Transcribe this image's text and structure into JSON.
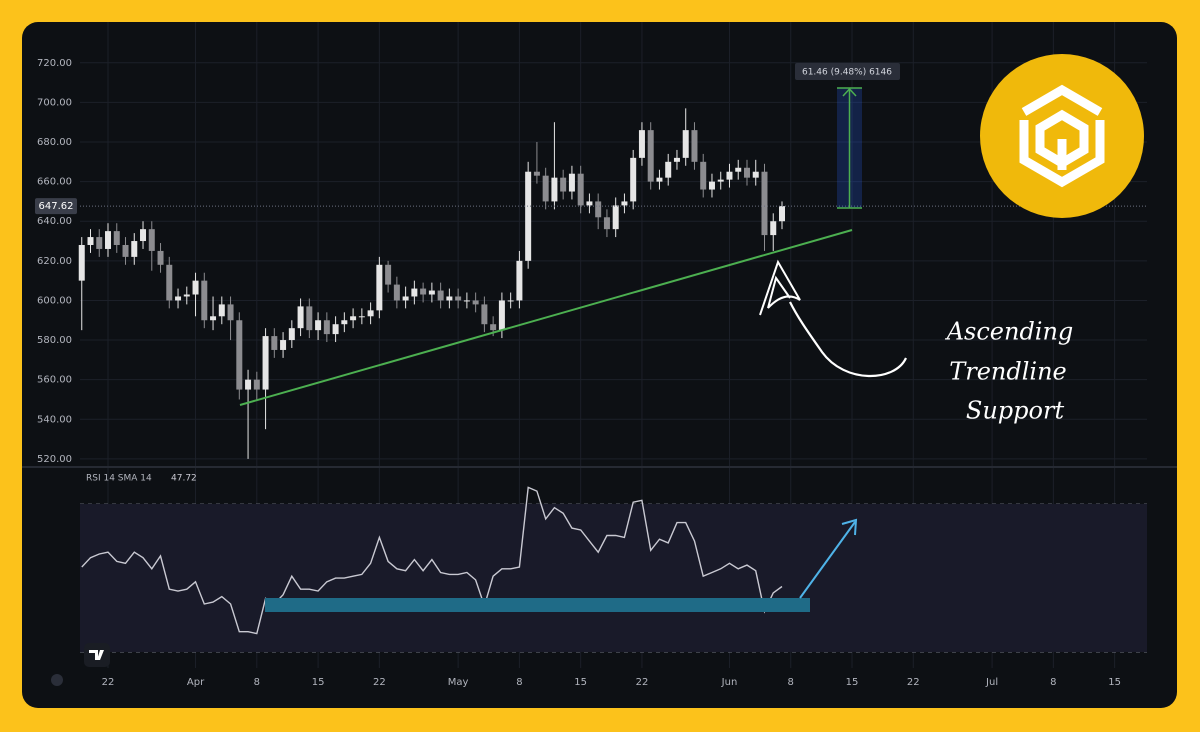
{
  "chart_data": [
    {
      "type": "candlestick",
      "x": [
        19,
        20,
        21,
        22,
        23,
        24,
        25,
        26,
        27,
        28,
        29,
        30,
        31,
        32,
        33,
        34,
        35,
        36,
        37,
        38,
        39,
        40,
        41,
        42,
        43,
        44,
        45,
        46,
        47,
        48,
        49,
        50,
        51,
        52,
        53,
        54,
        55,
        56,
        57,
        58,
        59,
        60,
        61,
        62,
        63,
        64,
        65,
        66,
        67,
        68,
        69,
        70,
        71,
        72,
        73,
        74,
        75,
        76,
        77,
        78,
        79,
        80,
        81,
        82,
        83,
        84,
        85,
        86,
        87,
        88,
        89,
        90,
        91,
        92,
        93,
        94,
        95,
        96,
        97,
        98,
        99
      ],
      "open": [
        610,
        628,
        632,
        626,
        635,
        628,
        622,
        630,
        636,
        625,
        618,
        600,
        602,
        603,
        610,
        590,
        592,
        598,
        590,
        555,
        560,
        555,
        582,
        575,
        580,
        586,
        597,
        585,
        590,
        583,
        588,
        590,
        592,
        592,
        595,
        618,
        608,
        600,
        602,
        606,
        603,
        605,
        600,
        602,
        600,
        600,
        598,
        588,
        585,
        600,
        600,
        620,
        665,
        663,
        650,
        662,
        655,
        664,
        648,
        650,
        642,
        636,
        648,
        650,
        672,
        686,
        660,
        662,
        670,
        672,
        686,
        670,
        656,
        660,
        661,
        665,
        667,
        662,
        665,
        633,
        640
      ],
      "high": [
        632,
        636,
        636,
        639,
        639,
        632,
        634,
        640,
        640,
        629,
        622,
        606,
        607,
        614,
        614,
        602,
        602,
        602,
        594,
        565,
        564,
        586,
        586,
        584,
        590,
        601,
        601,
        594,
        594,
        592,
        594,
        596,
        596,
        599,
        622,
        620,
        612,
        607,
        610,
        609,
        609,
        609,
        606,
        606,
        604,
        604,
        602,
        592,
        604,
        604,
        625,
        670,
        680,
        667,
        690,
        666,
        668,
        668,
        654,
        654,
        646,
        652,
        654,
        676,
        690,
        690,
        666,
        674,
        676,
        697,
        690,
        674,
        664,
        665,
        669,
        671,
        671,
        671,
        669,
        644,
        650
      ],
      "low": [
        585,
        624,
        622,
        622,
        624,
        618,
        618,
        626,
        615,
        614,
        596,
        596,
        598,
        592,
        586,
        585,
        588,
        580,
        550,
        520,
        550,
        535,
        571,
        571,
        576,
        582,
        581,
        580,
        579,
        579,
        584,
        586,
        588,
        588,
        591,
        604,
        596,
        596,
        598,
        599,
        599,
        596,
        596,
        596,
        596,
        594,
        584,
        582,
        581,
        596,
        596,
        616,
        659,
        646,
        646,
        651,
        651,
        644,
        644,
        636,
        632,
        632,
        644,
        646,
        668,
        656,
        656,
        658,
        666,
        668,
        666,
        652,
        652,
        656,
        657,
        661,
        658,
        658,
        625,
        625,
        636
      ],
      "close": [
        628,
        632,
        626,
        635,
        628,
        622,
        630,
        636,
        625,
        618,
        600,
        602,
        603,
        610,
        590,
        592,
        598,
        590,
        555,
        560,
        555,
        582,
        575,
        580,
        586,
        597,
        585,
        590,
        583,
        588,
        590,
        592,
        592,
        595,
        618,
        608,
        600,
        602,
        606,
        603,
        605,
        600,
        602,
        600,
        600,
        598,
        588,
        585,
        600,
        600,
        620,
        665,
        663,
        650,
        662,
        655,
        664,
        648,
        650,
        642,
        636,
        648,
        650,
        672,
        686,
        660,
        662,
        670,
        672,
        686,
        670,
        656,
        660,
        661,
        665,
        667,
        662,
        665,
        633,
        640,
        647.62
      ],
      "up_color": "#e6e6e6",
      "down_color": "#8c8c90",
      "xlim": [
        18.8,
        140.7
      ],
      "xticks": [
        22,
        {
          "value": 32,
          "label": "Apr"
        },
        {
          "value": 39,
          "label": "8"
        },
        {
          "value": 46,
          "label": "15"
        },
        {
          "value": 53,
          "label": "22"
        },
        {
          "value": 62,
          "label": "May"
        },
        {
          "value": 69,
          "label": "8"
        },
        {
          "value": 76,
          "label": "15"
        },
        {
          "value": 83,
          "label": "22"
        },
        {
          "value": 93,
          "label": "Jun"
        },
        {
          "value": 100,
          "label": "8"
        },
        {
          "value": 107,
          "label": "15"
        },
        {
          "value": 114,
          "label": "22"
        },
        {
          "value": 123,
          "label": "Jul"
        },
        {
          "value": 130,
          "label": "8"
        },
        {
          "value": 137,
          "label": "15"
        }
      ],
      "ylim": [
        515.9,
        740.6
      ],
      "yticks": [
        {
          "value": 520,
          "label": "520.00"
        },
        {
          "value": 540,
          "label": "540.00"
        },
        {
          "value": 560,
          "label": "560.00"
        },
        {
          "value": 580,
          "label": "580.00"
        },
        {
          "value": 600,
          "label": "600.00"
        },
        {
          "value": 620,
          "label": "620.00"
        },
        {
          "value": 640,
          "label": "640.00"
        },
        {
          "value": 660,
          "label": "660.00"
        },
        {
          "value": 680,
          "label": "680.00"
        },
        {
          "value": 700,
          "label": "700.00"
        },
        {
          "value": 720,
          "label": "720.00"
        }
      ],
      "grid": true,
      "measure_label": "61.46 (9.48%) 6146",
      "annotation": [
        "Ascending",
        "Trendline",
        "Support"
      ]
    },
    {
      "type": "line",
      "name": "RSI 14 SMA 14",
      "color": "#c9c9d2",
      "x": [
        19,
        20,
        21,
        22,
        23,
        24,
        25,
        26,
        27,
        28,
        29,
        30,
        31,
        32,
        33,
        34,
        35,
        36,
        37,
        38,
        39,
        40,
        41,
        42,
        43,
        44,
        45,
        46,
        47,
        48,
        49,
        50,
        51,
        52,
        53,
        54,
        55,
        56,
        57,
        58,
        59,
        60,
        61,
        62,
        63,
        64,
        65,
        66,
        67,
        68,
        69,
        70,
        71,
        72,
        73,
        74,
        75,
        76,
        77,
        78,
        79,
        80,
        81,
        82,
        83,
        84,
        85,
        86,
        87,
        88,
        89,
        90,
        91,
        92,
        93,
        94,
        95,
        96,
        97,
        98,
        99
      ],
      "values": [
        53,
        55.5,
        56.5,
        57,
        54.5,
        54,
        57,
        55.5,
        52.5,
        56,
        47,
        46.5,
        47,
        49,
        43,
        43.5,
        45,
        43,
        35.5,
        35.5,
        35,
        44.5,
        43,
        45.5,
        50.5,
        47,
        47,
        46.5,
        49,
        50,
        50,
        50.5,
        51,
        54,
        61,
        54.5,
        52.5,
        52,
        55,
        52,
        55,
        51.5,
        51,
        51,
        51.5,
        49.5,
        42.5,
        50.5,
        52.5,
        52.5,
        53,
        74.5,
        73.5,
        66,
        69,
        67.5,
        63.5,
        63,
        60,
        57,
        61.5,
        61.5,
        61,
        70.5,
        71,
        57.5,
        60.5,
        59.5,
        65,
        65,
        60,
        50.5,
        51.5,
        52.5,
        54,
        52.5,
        53.5,
        52,
        41,
        46,
        47.72
      ],
      "ylim": [
        25.7,
        79.2
      ],
      "levels": [
        70,
        50,
        30
      ]
    }
  ]
}
